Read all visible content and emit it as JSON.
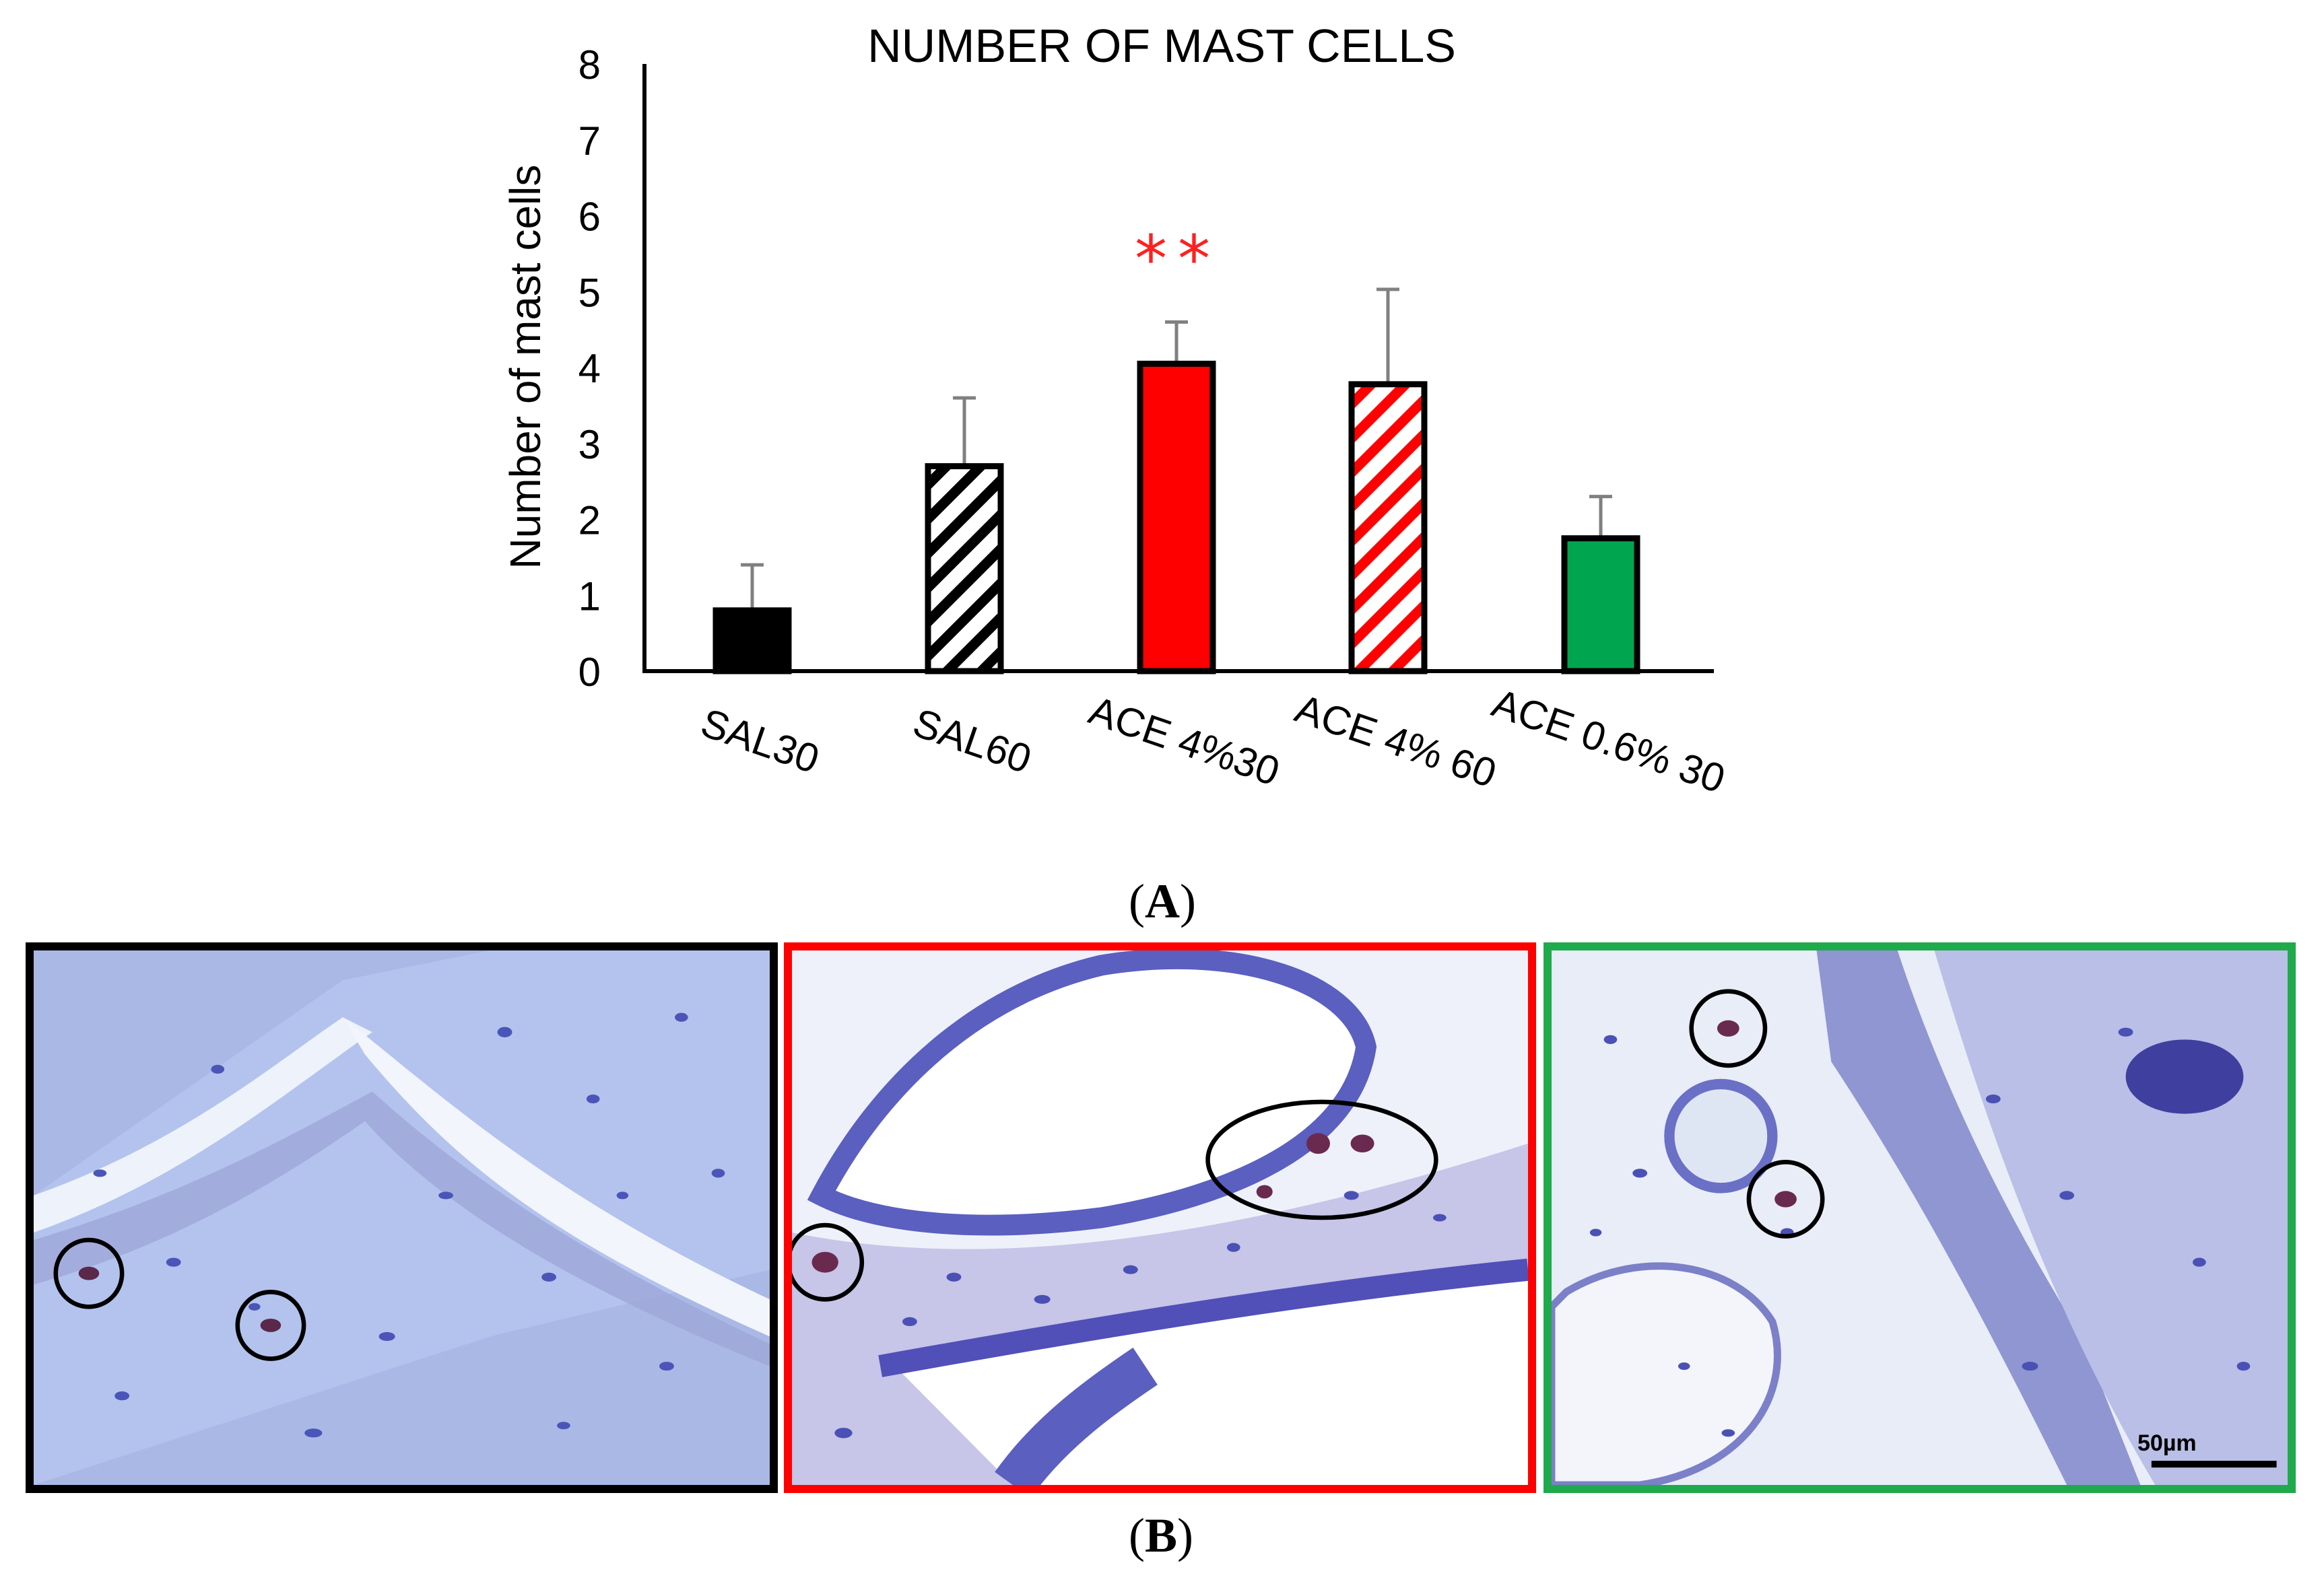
{
  "chart_data": {
    "type": "bar",
    "title": "NUMBER OF MAST CELLS",
    "ylabel": "Number of mast cells",
    "xlabel": "",
    "ylim": [
      0,
      8
    ],
    "yticks": [
      0,
      1,
      2,
      3,
      4,
      5,
      6,
      7,
      8
    ],
    "grid": false,
    "categories": [
      "SAL30",
      "SAL60",
      "ACE 4%30",
      "ACE 4% 60",
      "ACE 0.6% 30"
    ],
    "values": [
      0.8,
      2.7,
      4.05,
      3.78,
      1.75
    ],
    "error": [
      0.6,
      0.9,
      0.55,
      1.25,
      0.55
    ],
    "colors": [
      "#000000",
      "#000000",
      "#ff0000",
      "#ff0000",
      "#00a64f"
    ],
    "patterns": [
      "solid",
      "hatch",
      "solid",
      "hatch",
      "solid"
    ],
    "annotations": [
      {
        "category": "ACE 4%30",
        "text": "**",
        "color": "#ff2020"
      }
    ]
  },
  "panels": {
    "a_label_open": "(",
    "a_label": "A",
    "a_label_close": ")",
    "b_label_open": "(",
    "b_label": "B",
    "b_label_close": ")"
  },
  "micrographs": [
    {
      "border_color": "#000000"
    },
    {
      "border_color": "#ff0000"
    },
    {
      "border_color": "#1faa4c"
    }
  ],
  "scale_bar": {
    "label": "50µm"
  }
}
